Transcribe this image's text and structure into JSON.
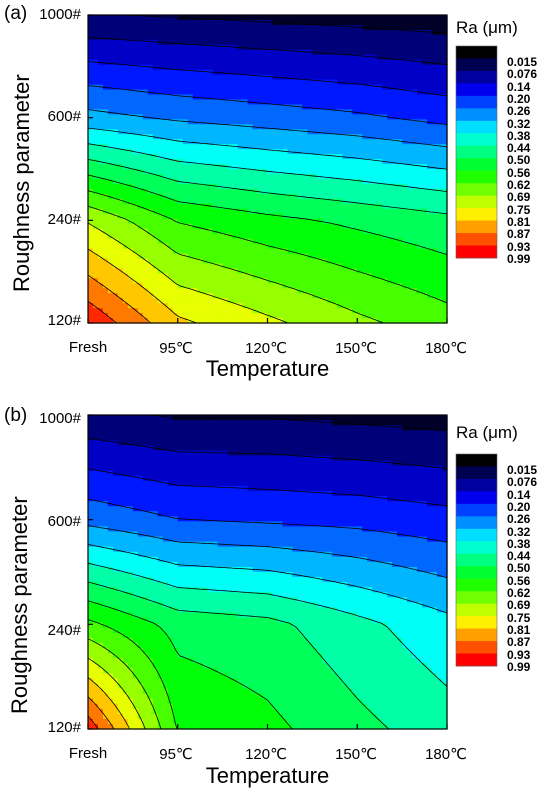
{
  "chart_data": [
    {
      "type": "heatmap",
      "panel_label": "(a)",
      "xlabel": "Temperature",
      "ylabel": "Roughness parameter",
      "x_categories": [
        "Fresh",
        "95℃",
        "120℃",
        "150℃",
        "180℃"
      ],
      "y_categories": [
        "120#",
        "240#",
        "600#",
        "1000#"
      ],
      "colorbar_title": "Ra (μm)",
      "colorbar_levels": [
        "0.015",
        "0.076",
        "0.14",
        "0.20",
        "0.26",
        "0.32",
        "0.38",
        "0.44",
        "0.50",
        "0.56",
        "0.62",
        "0.69",
        "0.75",
        "0.81",
        "0.87",
        "0.93",
        "0.99"
      ],
      "values": [
        [
          0.98,
          0.82,
          0.76,
          0.7,
          0.65
        ],
        [
          0.74,
          0.62,
          0.58,
          0.55,
          0.52
        ],
        [
          0.34,
          0.31,
          0.29,
          0.27,
          0.24
        ],
        [
          0.08,
          0.07,
          0.06,
          0.05,
          0.04
        ]
      ],
      "colors": [
        "#000000",
        "#0000ff",
        "#00ffff",
        "#00ff00",
        "#ffff00",
        "#ff0000"
      ]
    },
    {
      "type": "heatmap",
      "panel_label": "(b)",
      "xlabel": "Temperature",
      "ylabel": "Roughness parameter",
      "x_categories": [
        "Fresh",
        "95℃",
        "120℃",
        "150℃",
        "180℃"
      ],
      "y_categories": [
        "120#",
        "240#",
        "600#",
        "1000#"
      ],
      "colorbar_title": "Ra (μm)",
      "colorbar_levels": [
        "0.015",
        "0.076",
        "0.14",
        "0.20",
        "0.26",
        "0.32",
        "0.38",
        "0.44",
        "0.50",
        "0.56",
        "0.62",
        "0.69",
        "0.75",
        "0.81",
        "0.87",
        "0.93",
        "0.99"
      ],
      "values": [
        [
          0.97,
          0.62,
          0.58,
          0.52,
          0.47
        ],
        [
          0.64,
          0.54,
          0.52,
          0.46,
          0.4
        ],
        [
          0.3,
          0.26,
          0.25,
          0.24,
          0.22
        ],
        [
          0.09,
          0.07,
          0.07,
          0.06,
          0.05
        ]
      ],
      "colors": [
        "#000000",
        "#0000ff",
        "#00ffff",
        "#00ff00",
        "#ffff00",
        "#ff0000"
      ]
    }
  ]
}
